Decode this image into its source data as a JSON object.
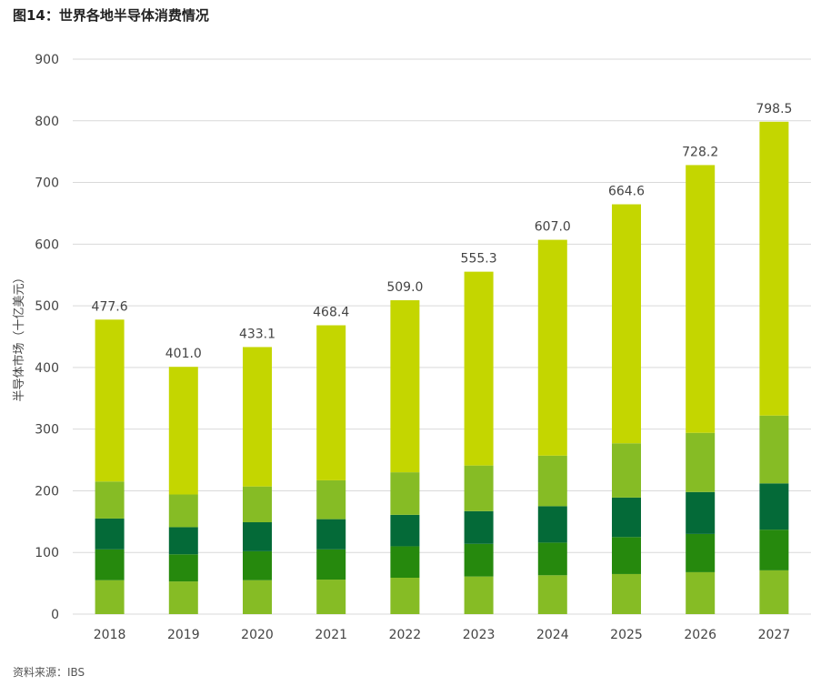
{
  "title": "图14：世界各地半导体消费情况",
  "source": "资料来源：IBS",
  "chart_data": {
    "type": "bar",
    "stacked": true,
    "ylabel": "半导体市场（十亿美元）",
    "xlabel": "",
    "ylim": [
      0,
      900
    ],
    "yticks": [
      0,
      100,
      200,
      300,
      400,
      500,
      600,
      700,
      800,
      900
    ],
    "grid": true,
    "categories": [
      "2018",
      "2019",
      "2020",
      "2021",
      "2022",
      "2023",
      "2024",
      "2025",
      "2026",
      "2027"
    ],
    "totals": [
      477.6,
      401.0,
      433.1,
      468.4,
      509.0,
      555.3,
      607.0,
      664.6,
      728.2,
      798.5
    ],
    "total_labels": [
      "477.6",
      "401.0",
      "433.1",
      "468.4",
      "509.0",
      "555.3",
      "607.0",
      "664.6",
      "728.2",
      "798.5"
    ],
    "series": [
      {
        "color": "#86bc25",
        "values": [
          55,
          53,
          55,
          56,
          59,
          61,
          63,
          65,
          68,
          71
        ]
      },
      {
        "color": "#26890d",
        "values": [
          50,
          44,
          47,
          49,
          51,
          53,
          53,
          60,
          62,
          66
        ]
      },
      {
        "color": "#046a38",
        "values": [
          50,
          44,
          47,
          49,
          51,
          53,
          59,
          64,
          68,
          75
        ]
      },
      {
        "color": "#86bc25",
        "values": [
          60,
          53,
          58,
          63,
          69,
          74,
          82,
          88,
          96,
          110
        ]
      },
      {
        "color": "#c4d600",
        "values": [
          262.6,
          207.0,
          226.1,
          251.4,
          279.0,
          314.3,
          350.0,
          387.6,
          434.2,
          476.5
        ]
      }
    ]
  }
}
